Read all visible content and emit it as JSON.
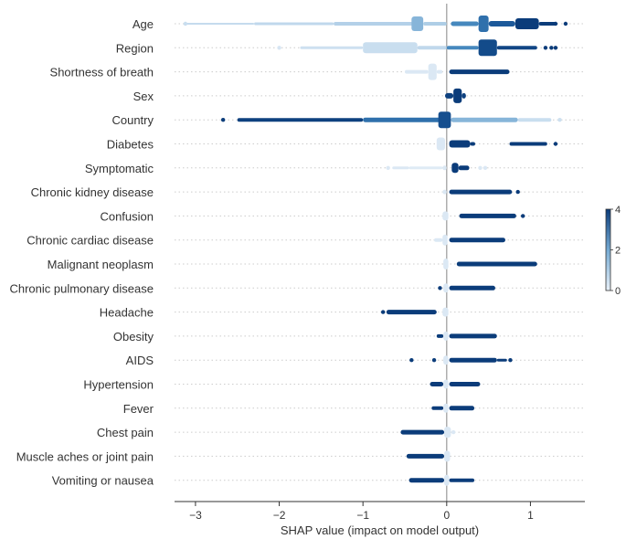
{
  "chart_data": {
    "type": "scatter",
    "subtype": "shap-beeswarm",
    "title": "",
    "xlabel": "SHAP value (impact on model output)",
    "ylabel": "",
    "xlim": [
      -3.25,
      1.65
    ],
    "xticks": [
      -3,
      -2,
      -1,
      0,
      1
    ],
    "xtick_labels": [
      "−3",
      "−2",
      "−1",
      "0",
      "1"
    ],
    "grid": false,
    "colorbar": {
      "range": [
        0,
        4
      ],
      "ticks": [
        0,
        2,
        4
      ],
      "low_color": "#e8f0f8",
      "high_color": "#0b3c7a"
    },
    "features": [
      {
        "name": "Age",
        "clusters": [
          {
            "from": -3.12,
            "to": -2.3,
            "value": 0.8,
            "width": 2
          },
          {
            "from": -2.3,
            "to": -1.35,
            "value": 0.9,
            "width": 3
          },
          {
            "from": -1.35,
            "to": -0.4,
            "value": 1.2,
            "width": 4
          },
          {
            "from": -0.42,
            "to": -0.28,
            "value": 1.8,
            "width": 16
          },
          {
            "from": -0.28,
            "to": 0.0,
            "value": 1.3,
            "width": 4
          },
          {
            "from": 0.05,
            "to": 0.38,
            "value": 2.6,
            "width": 5
          },
          {
            "from": 0.38,
            "to": 0.5,
            "value": 3.0,
            "width": 18
          },
          {
            "from": 0.5,
            "to": 0.82,
            "value": 3.4,
            "width": 6
          },
          {
            "from": 0.82,
            "to": 1.1,
            "value": 4.0,
            "width": 12
          },
          {
            "from": 1.1,
            "to": 1.32,
            "value": 4.0,
            "width": 4
          }
        ],
        "outliers": [
          {
            "x": -3.12,
            "value": 0.7
          },
          {
            "x": 1.42,
            "value": 4.0
          },
          {
            "x": 1.3,
            "value": 4.0
          }
        ]
      },
      {
        "name": "Region",
        "clusters": [
          {
            "from": -1.75,
            "to": -1.0,
            "value": 0.6,
            "width": 3
          },
          {
            "from": -1.0,
            "to": -0.35,
            "value": 0.7,
            "width": 12
          },
          {
            "from": -0.35,
            "to": 0.0,
            "value": 0.9,
            "width": 4
          },
          {
            "from": 0.0,
            "to": 0.38,
            "value": 2.6,
            "width": 4
          },
          {
            "from": 0.38,
            "to": 0.6,
            "value": 3.7,
            "width": 18
          },
          {
            "from": 0.6,
            "to": 1.08,
            "value": 3.8,
            "width": 4
          }
        ],
        "outliers": [
          {
            "x": -2.0,
            "value": 0.4
          },
          {
            "x": 1.18,
            "value": 4.0
          },
          {
            "x": 1.25,
            "value": 4.0
          },
          {
            "x": 1.3,
            "value": 4.0
          }
        ]
      },
      {
        "name": "Shortness of breath",
        "clusters": [
          {
            "from": -0.5,
            "to": -0.22,
            "value": 0.3,
            "width": 4
          },
          {
            "from": -0.22,
            "to": -0.12,
            "value": 0.3,
            "width": 18
          },
          {
            "from": -0.12,
            "to": -0.05,
            "value": 0.3,
            "width": 4
          },
          {
            "from": 0.03,
            "to": 0.75,
            "value": 4.0,
            "width": 5
          }
        ],
        "outliers": []
      },
      {
        "name": "Sex",
        "clusters": [
          {
            "from": -0.02,
            "to": 0.08,
            "value": 3.9,
            "width": 6
          },
          {
            "from": 0.08,
            "to": 0.18,
            "value": 4.0,
            "width": 16
          },
          {
            "from": 0.18,
            "to": 0.23,
            "value": 3.9,
            "width": 6
          }
        ],
        "outliers": []
      },
      {
        "name": "Country",
        "clusters": [
          {
            "from": -2.5,
            "to": -1.0,
            "value": 3.9,
            "width": 4
          },
          {
            "from": -1.0,
            "to": -0.05,
            "value": 3.0,
            "width": 5
          },
          {
            "from": -0.1,
            "to": 0.05,
            "value": 3.6,
            "width": 18
          },
          {
            "from": 0.05,
            "to": 0.85,
            "value": 1.8,
            "width": 5
          },
          {
            "from": 0.85,
            "to": 1.25,
            "value": 0.7,
            "width": 4
          }
        ],
        "outliers": [
          {
            "x": -2.67,
            "value": 4.0
          },
          {
            "x": 1.35,
            "value": 0.6
          }
        ]
      },
      {
        "name": "Diabetes",
        "clusters": [
          {
            "from": -0.12,
            "to": -0.02,
            "value": 0.3,
            "width": 14
          },
          {
            "from": 0.03,
            "to": 0.28,
            "value": 4.0,
            "width": 8
          },
          {
            "from": 0.28,
            "to": 0.34,
            "value": 4.0,
            "width": 4
          },
          {
            "from": 0.75,
            "to": 1.2,
            "value": 4.0,
            "width": 4
          }
        ],
        "outliers": [
          {
            "x": 1.3,
            "value": 4.0
          }
        ]
      },
      {
        "name": "Symptomatic",
        "clusters": [
          {
            "from": -0.65,
            "to": -0.45,
            "value": 0.3,
            "width": 3
          },
          {
            "from": -0.45,
            "to": -0.05,
            "value": 0.2,
            "width": 3
          },
          {
            "from": -0.05,
            "to": 0.0,
            "value": 0.3,
            "width": 5
          },
          {
            "from": 0.06,
            "to": 0.14,
            "value": 4.0,
            "width": 11
          },
          {
            "from": 0.14,
            "to": 0.27,
            "value": 4.0,
            "width": 5
          }
        ],
        "outliers": [
          {
            "x": -0.7,
            "value": 0.3
          },
          {
            "x": 0.4,
            "value": 0.3
          },
          {
            "x": 0.46,
            "value": 0.3
          }
        ]
      },
      {
        "name": "Chronic kidney disease",
        "clusters": [
          {
            "from": -0.05,
            "to": 0.0,
            "value": 0.3,
            "width": 5
          },
          {
            "from": 0.03,
            "to": 0.78,
            "value": 4.0,
            "width": 5
          }
        ],
        "outliers": [
          {
            "x": 0.85,
            "value": 4.0
          }
        ]
      },
      {
        "name": "Confusion",
        "clusters": [
          {
            "from": -0.05,
            "to": 0.02,
            "value": 0.3,
            "width": 10
          },
          {
            "from": 0.15,
            "to": 0.83,
            "value": 4.0,
            "width": 5
          }
        ],
        "outliers": [
          {
            "x": 0.91,
            "value": 4.0
          }
        ]
      },
      {
        "name": "Chronic cardiac disease",
        "clusters": [
          {
            "from": -0.15,
            "to": -0.05,
            "value": 0.3,
            "width": 4
          },
          {
            "from": -0.05,
            "to": 0.01,
            "value": 0.3,
            "width": 12
          },
          {
            "from": 0.03,
            "to": 0.7,
            "value": 4.0,
            "width": 5
          }
        ],
        "outliers": []
      },
      {
        "name": "Malignant neoplasm",
        "clusters": [
          {
            "from": -0.04,
            "to": 0.02,
            "value": 0.3,
            "width": 12
          },
          {
            "from": 0.12,
            "to": 1.08,
            "value": 4.0,
            "width": 5
          }
        ],
        "outliers": []
      },
      {
        "name": "Chronic pulmonary disease",
        "clusters": [
          {
            "from": -0.04,
            "to": 0.02,
            "value": 0.3,
            "width": 10
          },
          {
            "from": 0.03,
            "to": 0.58,
            "value": 4.0,
            "width": 5
          }
        ],
        "outliers": [
          {
            "x": -0.08,
            "value": 4.0
          }
        ]
      },
      {
        "name": "Headache",
        "clusters": [
          {
            "from": -0.72,
            "to": -0.12,
            "value": 4.0,
            "width": 5
          },
          {
            "from": -0.05,
            "to": 0.02,
            "value": 0.3,
            "width": 10
          }
        ],
        "outliers": [
          {
            "x": -0.76,
            "value": 4.0
          }
        ]
      },
      {
        "name": "Obesity",
        "clusters": [
          {
            "from": -0.12,
            "to": -0.04,
            "value": 4.0,
            "width": 4
          },
          {
            "from": -0.04,
            "to": 0.02,
            "value": 0.3,
            "width": 10
          },
          {
            "from": 0.03,
            "to": 0.6,
            "value": 4.0,
            "width": 5
          }
        ],
        "outliers": []
      },
      {
        "name": "AIDS",
        "clusters": [
          {
            "from": -0.04,
            "to": 0.02,
            "value": 0.3,
            "width": 10
          },
          {
            "from": 0.03,
            "to": 0.6,
            "value": 4.0,
            "width": 5
          },
          {
            "from": 0.6,
            "to": 0.72,
            "value": 4.0,
            "width": 3
          }
        ],
        "outliers": [
          {
            "x": -0.42,
            "value": 4.0
          },
          {
            "x": -0.15,
            "value": 4.0
          },
          {
            "x": 0.76,
            "value": 4.0
          }
        ]
      },
      {
        "name": "Hypertension",
        "clusters": [
          {
            "from": -0.2,
            "to": -0.04,
            "value": 4.0,
            "width": 5
          },
          {
            "from": -0.04,
            "to": 0.02,
            "value": 0.3,
            "width": 10
          },
          {
            "from": 0.03,
            "to": 0.4,
            "value": 4.0,
            "width": 5
          }
        ],
        "outliers": []
      },
      {
        "name": "Fever",
        "clusters": [
          {
            "from": -0.18,
            "to": -0.04,
            "value": 4.0,
            "width": 4
          },
          {
            "from": -0.04,
            "to": 0.02,
            "value": 0.3,
            "width": 10
          },
          {
            "from": 0.03,
            "to": 0.33,
            "value": 4.0,
            "width": 5
          }
        ],
        "outliers": []
      },
      {
        "name": "Chest pain",
        "clusters": [
          {
            "from": -0.55,
            "to": -0.03,
            "value": 4.0,
            "width": 5
          },
          {
            "from": -0.03,
            "to": 0.05,
            "value": 0.3,
            "width": 12
          }
        ],
        "outliers": [
          {
            "x": 0.08,
            "value": 0.3
          }
        ]
      },
      {
        "name": "Muscle aches or joint pain",
        "clusters": [
          {
            "from": -0.48,
            "to": -0.03,
            "value": 4.0,
            "width": 5
          },
          {
            "from": -0.03,
            "to": 0.04,
            "value": 0.3,
            "width": 12
          }
        ],
        "outliers": []
      },
      {
        "name": "Vomiting or nausea",
        "clusters": [
          {
            "from": -0.45,
            "to": -0.03,
            "value": 4.0,
            "width": 5
          },
          {
            "from": -0.03,
            "to": 0.03,
            "value": 0.3,
            "width": 12
          },
          {
            "from": 0.03,
            "to": 0.33,
            "value": 4.0,
            "width": 4
          }
        ],
        "outliers": []
      }
    ]
  }
}
